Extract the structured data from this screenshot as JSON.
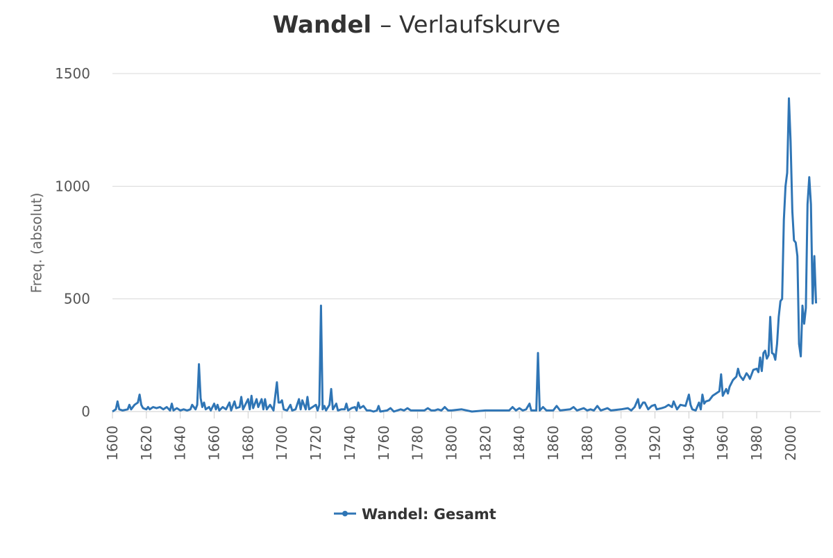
{
  "chart_data": {
    "type": "line",
    "title": [
      "Wandel",
      "– Verlaufskurve"
    ],
    "y_label": "Freq. (absolut)",
    "xlim": [
      1600,
      2016
    ],
    "ylim": [
      0,
      1500
    ],
    "xticks": [
      1600,
      1620,
      1640,
      1660,
      1680,
      1700,
      1720,
      1740,
      1760,
      1780,
      1800,
      1820,
      1840,
      1860,
      1880,
      1900,
      1920,
      1940,
      1960,
      1980,
      2000
    ],
    "yticks": [
      0,
      500,
      1000,
      1500
    ],
    "grid": true,
    "series": [
      {
        "name": "Wandel: Gesamt",
        "color": "#2f75b5",
        "x": [
          1600,
          1602,
          1603,
          1604,
          1606,
          1609,
          1610,
          1611,
          1613,
          1615,
          1616,
          1617,
          1618,
          1620,
          1621,
          1622,
          1624,
          1626,
          1628,
          1630,
          1632,
          1634,
          1635,
          1636,
          1638,
          1640,
          1642,
          1644,
          1646,
          1647,
          1649,
          1650,
          1651,
          1652,
          1653,
          1654,
          1655,
          1657,
          1658,
          1660,
          1661,
          1662,
          1663,
          1665,
          1667,
          1669,
          1670,
          1672,
          1673,
          1675,
          1676,
          1677,
          1679,
          1680,
          1681,
          1682,
          1683,
          1685,
          1686,
          1688,
          1689,
          1690,
          1691,
          1693,
          1695,
          1697,
          1698,
          1699,
          1700,
          1701,
          1703,
          1705,
          1706,
          1708,
          1710,
          1711,
          1712,
          1713,
          1714,
          1715,
          1716,
          1718,
          1720,
          1721,
          1722,
          1723,
          1724,
          1725,
          1726,
          1728,
          1729,
          1730,
          1732,
          1733,
          1735,
          1737,
          1738,
          1739,
          1741,
          1743,
          1744,
          1745,
          1746,
          1748,
          1750,
          1752,
          1754,
          1756,
          1757,
          1758,
          1762,
          1764,
          1766,
          1770,
          1772,
          1774,
          1776,
          1780,
          1784,
          1786,
          1788,
          1790,
          1792,
          1794,
          1796,
          1798,
          1800,
          1806,
          1812,
          1820,
          1828,
          1834,
          1836,
          1838,
          1840,
          1842,
          1844,
          1846,
          1847,
          1850,
          1851,
          1852,
          1854,
          1856,
          1860,
          1862,
          1864,
          1870,
          1872,
          1874,
          1878,
          1880,
          1882,
          1884,
          1886,
          1888,
          1890,
          1892,
          1894,
          1900,
          1904,
          1906,
          1908,
          1910,
          1911,
          1913,
          1914,
          1916,
          1918,
          1920,
          1921,
          1924,
          1926,
          1928,
          1930,
          1931,
          1933,
          1935,
          1938,
          1940,
          1941,
          1942,
          1944,
          1946,
          1947,
          1948,
          1949,
          1950,
          1952,
          1954,
          1956,
          1958,
          1959,
          1960,
          1962,
          1963,
          1964,
          1966,
          1968,
          1969,
          1970,
          1972,
          1974,
          1975,
          1976,
          1978,
          1980,
          1981,
          1982,
          1983,
          1984,
          1985,
          1986,
          1987,
          1988,
          1989,
          1990,
          1991,
          1992,
          1993,
          1994,
          1995,
          1996,
          1997,
          1998,
          1999,
          2000,
          2001,
          2002,
          2003,
          2004,
          2005,
          2006,
          2007,
          2008,
          2009,
          2010,
          2011,
          2012,
          2013,
          2014,
          2015
        ],
        "values": [
          0,
          10,
          45,
          10,
          5,
          10,
          30,
          10,
          30,
          40,
          75,
          30,
          15,
          10,
          20,
          10,
          20,
          15,
          20,
          10,
          20,
          5,
          35,
          5,
          15,
          5,
          10,
          5,
          10,
          30,
          10,
          30,
          210,
          60,
          20,
          40,
          10,
          20,
          5,
          35,
          10,
          30,
          5,
          20,
          10,
          40,
          5,
          45,
          15,
          20,
          65,
          10,
          40,
          55,
          10,
          70,
          15,
          55,
          20,
          55,
          10,
          55,
          10,
          30,
          5,
          130,
          40,
          40,
          50,
          10,
          5,
          30,
          5,
          10,
          55,
          10,
          50,
          30,
          10,
          65,
          10,
          20,
          30,
          5,
          30,
          470,
          10,
          25,
          5,
          30,
          100,
          10,
          35,
          5,
          10,
          10,
          35,
          5,
          15,
          20,
          5,
          40,
          15,
          25,
          5,
          5,
          0,
          5,
          25,
          0,
          5,
          15,
          0,
          10,
          5,
          15,
          5,
          5,
          5,
          15,
          5,
          5,
          10,
          5,
          20,
          5,
          5,
          10,
          0,
          5,
          5,
          5,
          20,
          5,
          15,
          5,
          10,
          35,
          5,
          5,
          260,
          5,
          20,
          5,
          5,
          25,
          5,
          10,
          20,
          5,
          15,
          5,
          10,
          5,
          25,
          5,
          10,
          15,
          5,
          10,
          15,
          5,
          20,
          55,
          15,
          40,
          40,
          10,
          25,
          30,
          10,
          15,
          20,
          30,
          20,
          45,
          10,
          30,
          25,
          75,
          30,
          10,
          5,
          40,
          10,
          75,
          35,
          45,
          50,
          70,
          80,
          90,
          165,
          70,
          100,
          80,
          110,
          140,
          155,
          190,
          160,
          140,
          170,
          160,
          145,
          185,
          190,
          175,
          240,
          180,
          260,
          270,
          235,
          250,
          420,
          260,
          255,
          230,
          300,
          420,
          490,
          500,
          850,
          1000,
          1060,
          1390,
          1200,
          890,
          760,
          750,
          690,
          300,
          245,
          470,
          390,
          460,
          920,
          1040,
          920,
          480,
          690,
          480
        ]
      }
    ]
  }
}
